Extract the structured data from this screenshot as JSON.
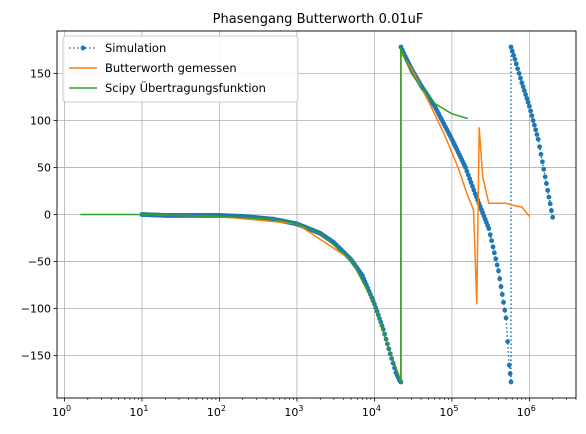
{
  "chart_data": {
    "type": "line",
    "title": "Phasengang Butterworth 0.01uF",
    "xlabel": "",
    "ylabel": "",
    "xscale": "log",
    "xlim": [
      0.8,
      4000000
    ],
    "ylim": [
      -195,
      195
    ],
    "grid": true,
    "legend_position": "top-left",
    "x_ticks": [
      {
        "value": 1,
        "base": "10",
        "exp": "0"
      },
      {
        "value": 10,
        "base": "10",
        "exp": "1"
      },
      {
        "value": 100,
        "base": "10",
        "exp": "2"
      },
      {
        "value": 1000,
        "base": "10",
        "exp": "3"
      },
      {
        "value": 10000,
        "base": "10",
        "exp": "4"
      },
      {
        "value": 100000,
        "base": "10",
        "exp": "5"
      },
      {
        "value": 1000000,
        "base": "10",
        "exp": "6"
      }
    ],
    "y_ticks": [
      {
        "value": -150,
        "label": "−150"
      },
      {
        "value": -100,
        "label": "−100"
      },
      {
        "value": -50,
        "label": "−50"
      },
      {
        "value": 0,
        "label": "0"
      },
      {
        "value": 50,
        "label": "50"
      },
      {
        "value": 100,
        "label": "100"
      },
      {
        "value": 150,
        "label": "150"
      }
    ],
    "series": [
      {
        "name": "Simulation",
        "color": "#1f77b4",
        "style": "dotted-markers",
        "x": [
          10,
          20,
          50,
          100,
          200,
          500,
          1000,
          2000,
          3000,
          5000,
          7000,
          10000,
          13000,
          16000,
          19000,
          21000,
          22000,
          22000,
          25000,
          30000,
          40000,
          60000,
          100000,
          150000,
          200000,
          300000,
          400000,
          500000,
          550000,
          580000,
          580000,
          650000,
          800000,
          1000000,
          1300000,
          1600000,
          2000000
        ],
        "y": [
          0,
          -1,
          -1,
          -1,
          -2,
          -5,
          -10,
          -20,
          -30,
          -48,
          -65,
          -95,
          -122,
          -148,
          -168,
          -176,
          -178,
          178,
          168,
          155,
          137,
          115,
          80,
          50,
          22,
          -15,
          -60,
          -110,
          -160,
          -178,
          178,
          165,
          140,
          115,
          80,
          40,
          -3
        ]
      },
      {
        "name": "Butterworth gemessen",
        "color": "#ff7f0e",
        "style": "solid",
        "x": [
          10,
          100,
          1000,
          5000,
          10000,
          15000,
          20000,
          21500,
          22000,
          22000,
          30000,
          50000,
          80000,
          120000,
          160000,
          190000,
          210000,
          225000,
          250000,
          300000,
          400000,
          500000,
          600000,
          800000,
          1000000
        ],
        "y": [
          0,
          -2,
          -10,
          -48,
          -95,
          -140,
          -168,
          -176,
          -178,
          172,
          155,
          120,
          85,
          50,
          20,
          5,
          -95,
          92,
          40,
          12,
          12,
          12,
          10,
          8,
          -2
        ]
      },
      {
        "name": "Scipy Übertragungsfunktion",
        "color": "#2ca02c",
        "style": "solid",
        "x": [
          1.6,
          10,
          100,
          500,
          1000,
          2000,
          5000,
          10000,
          15000,
          20000,
          21500,
          22000,
          22000,
          25000,
          30000,
          40000,
          60000,
          100000,
          160000
        ],
        "y": [
          0,
          0,
          -2,
          -5,
          -10,
          -20,
          -48,
          -95,
          -140,
          -168,
          -176,
          -178,
          178,
          165,
          150,
          135,
          118,
          107,
          102
        ]
      }
    ]
  }
}
